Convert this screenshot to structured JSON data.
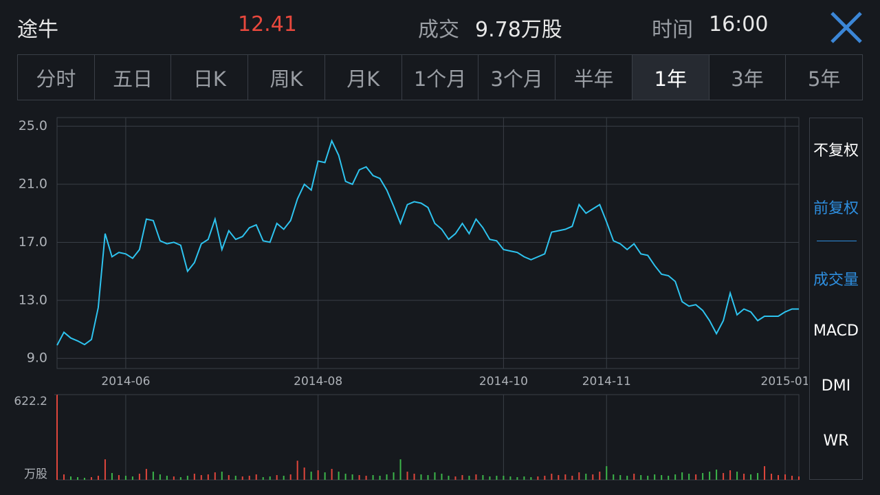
{
  "header": {
    "title": "途牛",
    "price": "12.41",
    "volume_label": "成交",
    "volume": "9.78万股",
    "time_label": "时间",
    "time": "16:00"
  },
  "tabs": {
    "items": [
      "分时",
      "五日",
      "日K",
      "周K",
      "月K",
      "1个月",
      "3个月",
      "半年",
      "1年",
      "3年",
      "5年"
    ],
    "active": "1年"
  },
  "side_menu": {
    "items": [
      {
        "label": "不复权",
        "selected": false
      },
      {
        "label": "前复权",
        "selected": true
      },
      {
        "label": "成交量",
        "selected": true
      },
      {
        "label": "MACD",
        "selected": false
      },
      {
        "label": "DMI",
        "selected": false
      },
      {
        "label": "WR",
        "selected": false
      }
    ]
  },
  "chart_data": [
    {
      "type": "line",
      "color": "#2ec4f0",
      "grid": true,
      "categories": [
        null,
        null,
        null,
        null,
        null,
        null,
        null,
        null,
        null,
        null,
        "2014-06",
        null,
        null,
        null,
        null,
        null,
        null,
        null,
        null,
        null,
        null,
        null,
        null,
        null,
        null,
        null,
        null,
        null,
        null,
        null,
        null,
        null,
        null,
        null,
        null,
        null,
        null,
        null,
        "2014-08",
        null,
        null,
        null,
        null,
        null,
        null,
        null,
        null,
        null,
        null,
        null,
        null,
        null,
        null,
        null,
        null,
        null,
        null,
        null,
        null,
        null,
        null,
        null,
        null,
        null,
        null,
        "2014-10",
        null,
        null,
        null,
        null,
        null,
        null,
        null,
        null,
        null,
        null,
        null,
        null,
        null,
        null,
        "2014-11",
        null,
        null,
        null,
        null,
        null,
        null,
        null,
        null,
        null,
        null,
        null,
        null,
        null,
        null,
        null,
        null,
        null,
        null,
        null,
        null,
        null,
        null,
        null,
        null,
        null,
        "2015-01",
        null,
        null
      ],
      "values": [
        9.9,
        10.8,
        10.4,
        10.2,
        9.95,
        10.3,
        12.5,
        17.6,
        16.0,
        16.3,
        16.2,
        15.9,
        16.5,
        18.6,
        18.5,
        17.1,
        16.9,
        17.0,
        16.8,
        15.0,
        15.6,
        16.9,
        17.2,
        18.6,
        16.5,
        17.8,
        17.2,
        17.4,
        18.0,
        18.2,
        17.1,
        17.0,
        18.3,
        17.9,
        18.5,
        20.0,
        21.0,
        20.6,
        22.6,
        22.5,
        24.0,
        23.0,
        21.2,
        21.0,
        22.0,
        22.2,
        21.6,
        21.4,
        20.6,
        19.5,
        18.3,
        19.6,
        19.8,
        19.7,
        19.4,
        18.3,
        17.9,
        17.2,
        17.6,
        18.3,
        17.6,
        18.6,
        18.0,
        17.2,
        17.1,
        16.5,
        16.4,
        16.3,
        16.0,
        15.8,
        16.0,
        16.2,
        17.7,
        17.8,
        17.9,
        18.1,
        19.6,
        19.0,
        19.3,
        19.6,
        18.4,
        17.1,
        16.9,
        16.5,
        16.9,
        16.2,
        16.1,
        15.4,
        14.8,
        14.7,
        14.3,
        12.9,
        12.6,
        12.7,
        12.3,
        11.6,
        10.7,
        11.6,
        13.5,
        12.0,
        12.4,
        12.2,
        11.6,
        11.9,
        11.9,
        11.9,
        12.2,
        12.4,
        12.4
      ],
      "ylim": [
        8.3,
        25.6
      ],
      "yticks": [
        {
          "value": 25,
          "label": "25.0"
        },
        {
          "value": 21,
          "label": "21.0"
        },
        {
          "value": 17,
          "label": "17.0"
        },
        {
          "value": 13,
          "label": "13.0"
        },
        {
          "value": 9,
          "label": "9.0"
        }
      ]
    },
    {
      "type": "bar",
      "up_color": "#e0463c",
      "down_color": "#3cb64a",
      "y_label": "万股",
      "values": [
        622.2,
        40,
        25,
        20,
        15,
        20,
        30,
        150,
        50,
        35,
        30,
        25,
        45,
        80,
        60,
        40,
        30,
        25,
        20,
        30,
        45,
        35,
        40,
        55,
        60,
        35,
        30,
        25,
        30,
        40,
        20,
        25,
        35,
        30,
        40,
        140,
        90,
        60,
        70,
        55,
        80,
        60,
        45,
        40,
        35,
        30,
        35,
        30,
        40,
        55,
        150,
        60,
        45,
        40,
        35,
        55,
        45,
        30,
        25,
        35,
        30,
        40,
        35,
        25,
        30,
        30,
        25,
        20,
        25,
        20,
        25,
        30,
        45,
        35,
        40,
        30,
        55,
        45,
        40,
        60,
        100,
        40,
        35,
        30,
        45,
        35,
        30,
        40,
        35,
        30,
        40,
        55,
        45,
        40,
        50,
        60,
        75,
        50,
        70,
        60,
        45,
        40,
        50,
        100,
        45,
        35,
        40,
        30,
        25
      ],
      "ylim": [
        0,
        622.2
      ],
      "yticks": [
        622.2
      ]
    }
  ]
}
